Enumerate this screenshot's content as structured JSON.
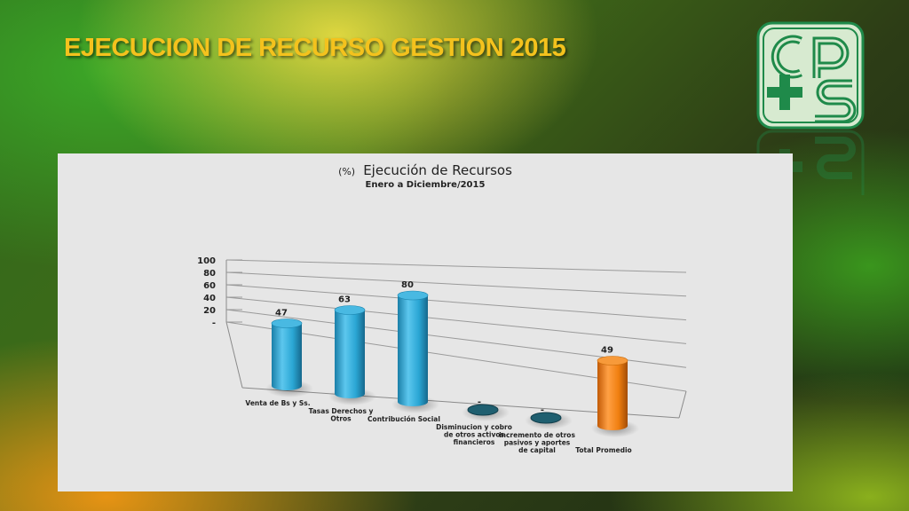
{
  "slide": {
    "title": "EJECUCION DE RECURSO GESTION 2015"
  },
  "logo": {
    "letters": "CPS"
  },
  "colors": {
    "title": "#f4c21d",
    "logo": "#1f8a4a",
    "series_blue": "#2aa6d4",
    "series_orange": "#f07f10"
  },
  "chart_data": {
    "type": "bar",
    "title_prefix": "(%)",
    "title": "Ejecución de Recursos",
    "subtitle": "Enero a Diciembre/2015",
    "xlabel": "",
    "ylabel": "",
    "ylim": [
      0,
      100
    ],
    "yticks": [
      0,
      20,
      40,
      60,
      80,
      100
    ],
    "ytick_labels": [
      "-",
      "20",
      "40",
      "60",
      "80",
      "100"
    ],
    "grid": true,
    "categories": [
      "Venta de Bs y Ss.",
      "Tasas Derechos y Otros",
      "Contribución Social",
      "Disminucion y cobro de otros activos financieros",
      "incremento de otros pasivos y aportes de capital",
      "Total Promedio"
    ],
    "category_lines": [
      [
        "Venta de Bs y Ss."
      ],
      [
        "Tasas Derechos y",
        "Otros"
      ],
      [
        "Contribución Social"
      ],
      [
        "Disminucion y cobro",
        "de otros activos",
        "financieros"
      ],
      [
        "incremento de otros",
        "pasivos y aportes",
        "de capital"
      ],
      [
        "Total Promedio"
      ]
    ],
    "values": [
      47,
      63,
      80,
      0,
      0,
      49
    ],
    "data_labels": [
      "47",
      "63",
      "80",
      "-",
      "-",
      "49"
    ],
    "bar_colors": [
      "#2aa6d4",
      "#2aa6d4",
      "#2aa6d4",
      "#2aa6d4",
      "#2aa6d4",
      "#f07f10"
    ]
  }
}
